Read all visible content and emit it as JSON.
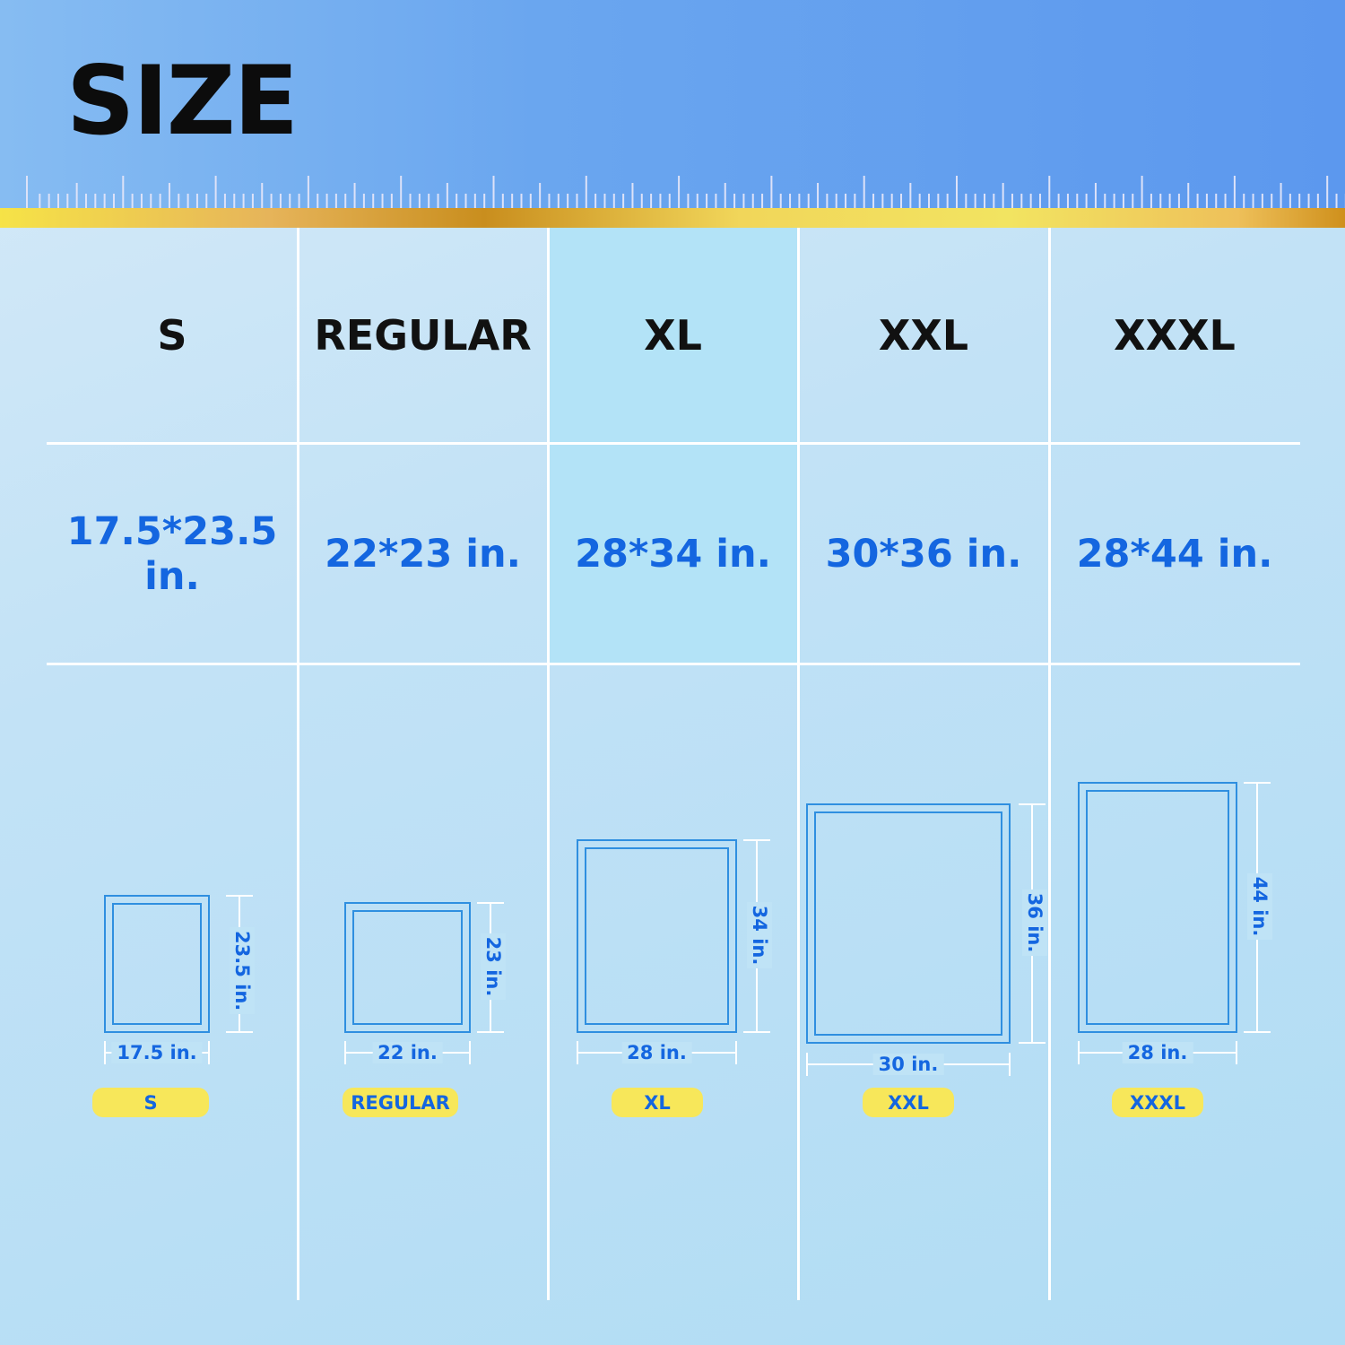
{
  "title": "SIZE",
  "colors": {
    "header_blue": "#5c98ee",
    "accent_blue": "#1466e0",
    "highlight": "#b3e3f7",
    "badge_yellow": "#f7e75a"
  },
  "highlighted_column": "XL",
  "sizes": [
    {
      "name": "S",
      "dimensions": "17.5*23.5 in.",
      "width_label": "17.5 in.",
      "height_label": "23.5 in.",
      "badge": "S"
    },
    {
      "name": "REGULAR",
      "dimensions": "22*23 in.",
      "width_label": "22 in.",
      "height_label": "23 in.",
      "badge": "REGULAR"
    },
    {
      "name": "XL",
      "dimensions": "28*34 in.",
      "width_label": "28 in.",
      "height_label": "34 in.",
      "badge": "XL"
    },
    {
      "name": "XXL",
      "dimensions": "30*36 in.",
      "width_label": "30 in.",
      "height_label": "36 in.",
      "badge": "XXL"
    },
    {
      "name": "XXXL",
      "dimensions": "28*44 in.",
      "width_label": "28 in.",
      "height_label": "44 in.",
      "badge": "XXXL"
    }
  ]
}
